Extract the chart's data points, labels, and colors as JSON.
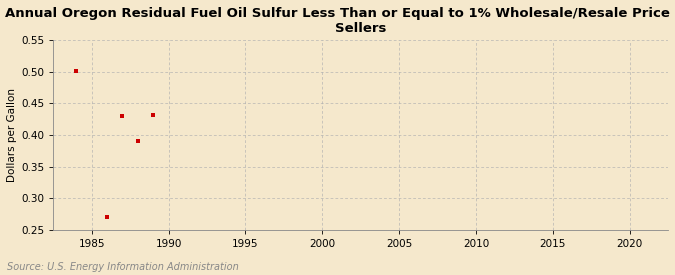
{
  "title": "Annual Oregon Residual Fuel Oil Sulfur Less Than or Equal to 1% Wholesale/Resale Price by All\nSellers",
  "ylabel": "Dollars per Gallon",
  "source": "Source: U.S. Energy Information Administration",
  "x_data": [
    1984,
    1986,
    1987,
    1988,
    1989
  ],
  "y_data": [
    0.502,
    0.271,
    0.43,
    0.39,
    0.431
  ],
  "xlim": [
    1982.5,
    2022.5
  ],
  "ylim": [
    0.25,
    0.55
  ],
  "xticks": [
    1985,
    1990,
    1995,
    2000,
    2005,
    2010,
    2015,
    2020
  ],
  "yticks": [
    0.25,
    0.3,
    0.35,
    0.4,
    0.45,
    0.5,
    0.55
  ],
  "marker_color": "#cc0000",
  "marker": "s",
  "marker_size": 3.5,
  "background_color": "#f5e8cc",
  "plot_bg_color": "#f5e8cc",
  "grid_color": "#b0b0b0",
  "title_fontsize": 9.5,
  "label_fontsize": 7.5,
  "tick_fontsize": 7.5,
  "source_fontsize": 7
}
